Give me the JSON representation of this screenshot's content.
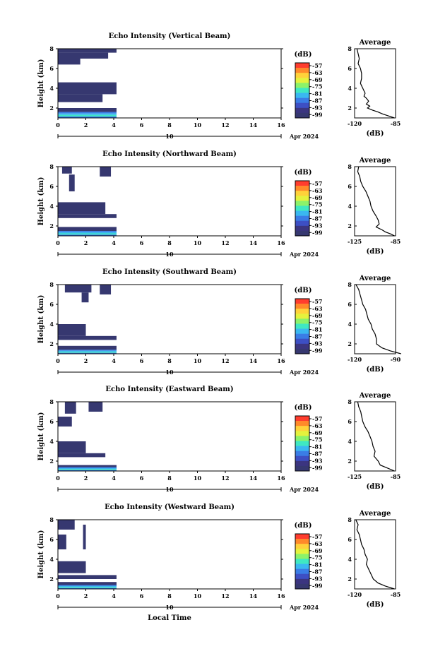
{
  "x_axis": {
    "ticks": [
      "0",
      "2",
      "4",
      "6",
      "8",
      "10",
      "12",
      "14",
      "16"
    ],
    "date_day": "10",
    "date_month": "Apr 2024",
    "label": "Local Time",
    "xlim": [
      0,
      16
    ]
  },
  "y_axis": {
    "label": "Height (km)",
    "ticks": [
      "2",
      "4",
      "6",
      "8"
    ],
    "ylim": [
      1,
      8
    ]
  },
  "colorbar": {
    "unit": "(dB)",
    "ticks": [
      "-57",
      "-63",
      "-69",
      "-75",
      "-81",
      "-87",
      "-93",
      "-99"
    ],
    "colors": [
      "#ff3d2e",
      "#ff8a2a",
      "#ffd23a",
      "#e5f23d",
      "#8cf26a",
      "#3fe8c2",
      "#3ab8f0",
      "#3a7de6",
      "#3d4fc4",
      "#3b3580",
      "#363870"
    ]
  },
  "average_panel": {
    "title": "Average",
    "xlabel": "(dB)"
  },
  "chart_data": [
    {
      "type": "heatmap",
      "title": "Echo Intensity (Vertical Beam)",
      "xlabel": "Local Time",
      "ylabel": "Height (km)",
      "xlim": [
        0,
        16
      ],
      "ylim": [
        1,
        8
      ],
      "data_end_time": 4.2,
      "blocks": [
        [
          0,
          4.2,
          7.6,
          8
        ],
        [
          0,
          3.6,
          7.0,
          7.6
        ],
        [
          0,
          1.6,
          6.4,
          7.0
        ],
        [
          0,
          4.2,
          3.4,
          4.6
        ],
        [
          0,
          3.2,
          2.6,
          3.4
        ],
        [
          0,
          4.2,
          1.6,
          2.0
        ]
      ],
      "surface_band": [
        1.0,
        1.6
      ],
      "average_profile": {
        "title": "Average",
        "xlim": [
          -120,
          -85
        ],
        "xticks": [
          "-120",
          "-85"
        ],
        "yticks": [
          "2",
          "4",
          "6",
          "8"
        ],
        "xlabel": "(dB)",
        "h": [
          8.0,
          7.5,
          7.0,
          6.5,
          6.0,
          5.5,
          5.0,
          4.5,
          4.0,
          3.5,
          3.2,
          3.0,
          2.7,
          2.4,
          2.2,
          2.0,
          1.8,
          1.6,
          1.4,
          1.2,
          1.0
        ],
        "db": [
          -118,
          -117,
          -116,
          -117,
          -115,
          -114,
          -114,
          -115,
          -113,
          -111,
          -112,
          -110,
          -108,
          -110,
          -107,
          -109,
          -105,
          -100,
          -96,
          -91,
          -86
        ]
      }
    },
    {
      "type": "heatmap",
      "title": "Echo Intensity (Northward Beam)",
      "xlabel": "Local Time",
      "ylabel": "Height (km)",
      "xlim": [
        0,
        16
      ],
      "ylim": [
        1,
        8
      ],
      "data_end_time": 4.2,
      "blocks": [
        [
          0.3,
          1.0,
          7.3,
          8
        ],
        [
          3.0,
          3.8,
          7.0,
          8
        ],
        [
          0.8,
          1.2,
          5.5,
          7.2
        ],
        [
          0,
          3.4,
          3.2,
          4.4
        ],
        [
          0,
          4.2,
          2.8,
          3.2
        ],
        [
          0,
          4.2,
          1.5,
          1.9
        ]
      ],
      "surface_band": [
        1.0,
        1.5
      ],
      "average_profile": {
        "title": "Average",
        "xlim": [
          -125,
          -85
        ],
        "xticks": [
          "-125",
          "-85"
        ],
        "yticks": [
          "2",
          "4",
          "6",
          "8"
        ],
        "xlabel": "(dB)",
        "h": [
          8.0,
          7.5,
          7.0,
          6.5,
          6.0,
          5.5,
          5.0,
          4.5,
          4.0,
          3.5,
          3.0,
          2.6,
          2.2,
          1.9,
          1.6,
          1.4,
          1.2,
          1.0
        ],
        "db": [
          -121,
          -122,
          -120,
          -119,
          -117,
          -114,
          -112,
          -110,
          -109,
          -107,
          -104,
          -102,
          -101,
          -104,
          -98,
          -95,
          -90,
          -86
        ]
      }
    },
    {
      "type": "heatmap",
      "title": "Echo Intensity (Southward Beam)",
      "xlabel": "Local Time",
      "ylabel": "Height (km)",
      "xlim": [
        0,
        16
      ],
      "ylim": [
        1,
        8
      ],
      "data_end_time": 4.2,
      "blocks": [
        [
          0.5,
          2.4,
          7.2,
          8
        ],
        [
          1.7,
          2.2,
          6.2,
          7.2
        ],
        [
          3.0,
          3.8,
          7.0,
          8
        ],
        [
          0,
          2.0,
          2.8,
          4.0
        ],
        [
          0,
          4.2,
          2.4,
          2.8
        ],
        [
          0,
          4.2,
          1.4,
          1.8
        ]
      ],
      "surface_band": [
        1.0,
        1.4
      ],
      "average_profile": {
        "title": "Average",
        "xlim": [
          -120,
          -90
        ],
        "xticks": [
          "-120",
          "-90"
        ],
        "yticks": [
          "2",
          "4",
          "6",
          "8"
        ],
        "xlabel": "(dB)",
        "h": [
          8.0,
          7.5,
          7.0,
          6.5,
          6.0,
          5.5,
          5.0,
          4.5,
          4.0,
          3.5,
          3.0,
          2.5,
          2.0,
          1.6,
          1.3,
          1.0
        ],
        "db": [
          -119,
          -117,
          -116,
          -115,
          -114,
          -112,
          -111,
          -110,
          -108,
          -107,
          -105,
          -104,
          -104,
          -100,
          -94,
          -86
        ]
      }
    },
    {
      "type": "heatmap",
      "title": "Echo Intensity (Eastward Beam)",
      "xlabel": "Local Time",
      "ylabel": "Height (km)",
      "xlim": [
        0,
        16
      ],
      "ylim": [
        1,
        8
      ],
      "data_end_time": 4.2,
      "blocks": [
        [
          0.5,
          1.3,
          6.8,
          8
        ],
        [
          2.2,
          3.2,
          7.0,
          8
        ],
        [
          0,
          1.0,
          5.5,
          6.5
        ],
        [
          0,
          2.0,
          2.8,
          4.0
        ],
        [
          0,
          3.4,
          2.4,
          2.8
        ],
        [
          0,
          4.2,
          1.2,
          1.6
        ]
      ],
      "surface_band": [
        1.0,
        1.4
      ],
      "average_profile": {
        "title": "Average",
        "xlim": [
          -125,
          -85
        ],
        "xticks": [
          "-125",
          "-85"
        ],
        "yticks": [
          "2",
          "4",
          "6",
          "8"
        ],
        "xlabel": "(dB)",
        "h": [
          8.0,
          7.5,
          7.0,
          6.5,
          6.0,
          5.5,
          5.0,
          4.5,
          4.0,
          3.5,
          3.0,
          2.5,
          2.0,
          1.6,
          1.3,
          1.0
        ],
        "db": [
          -122,
          -121,
          -119,
          -118,
          -117,
          -115,
          -112,
          -110,
          -108,
          -107,
          -105,
          -106,
          -102,
          -100,
          -93,
          -86
        ]
      }
    },
    {
      "type": "heatmap",
      "title": "Echo Intensity (Westward Beam)",
      "xlabel": "Local Time",
      "ylabel": "Height (km)",
      "xlim": [
        0,
        16
      ],
      "ylim": [
        1,
        8
      ],
      "data_end_time": 4.2,
      "blocks": [
        [
          0,
          1.2,
          7.0,
          8
        ],
        [
          1.8,
          2.0,
          5.0,
          7.5
        ],
        [
          0,
          0.6,
          5.0,
          6.5
        ],
        [
          0,
          2.0,
          2.6,
          3.8
        ],
        [
          0,
          4.2,
          2.0,
          2.4
        ],
        [
          0,
          4.2,
          1.3,
          1.7
        ]
      ],
      "surface_band": [
        1.0,
        1.4
      ],
      "average_profile": {
        "title": "Average",
        "xlim": [
          -120,
          -85
        ],
        "xticks": [
          "-120",
          "-85"
        ],
        "yticks": [
          "2",
          "4",
          "6",
          "8"
        ],
        "xlabel": "(dB)",
        "h": [
          8.0,
          7.5,
          7.0,
          6.5,
          6.0,
          5.5,
          5.0,
          4.5,
          4.0,
          3.5,
          3.0,
          2.5,
          2.0,
          1.6,
          1.3,
          1.0
        ],
        "db": [
          -119,
          -117,
          -118,
          -116,
          -115,
          -114,
          -112,
          -111,
          -109,
          -110,
          -108,
          -106,
          -104,
          -100,
          -94,
          -86
        ]
      }
    }
  ]
}
